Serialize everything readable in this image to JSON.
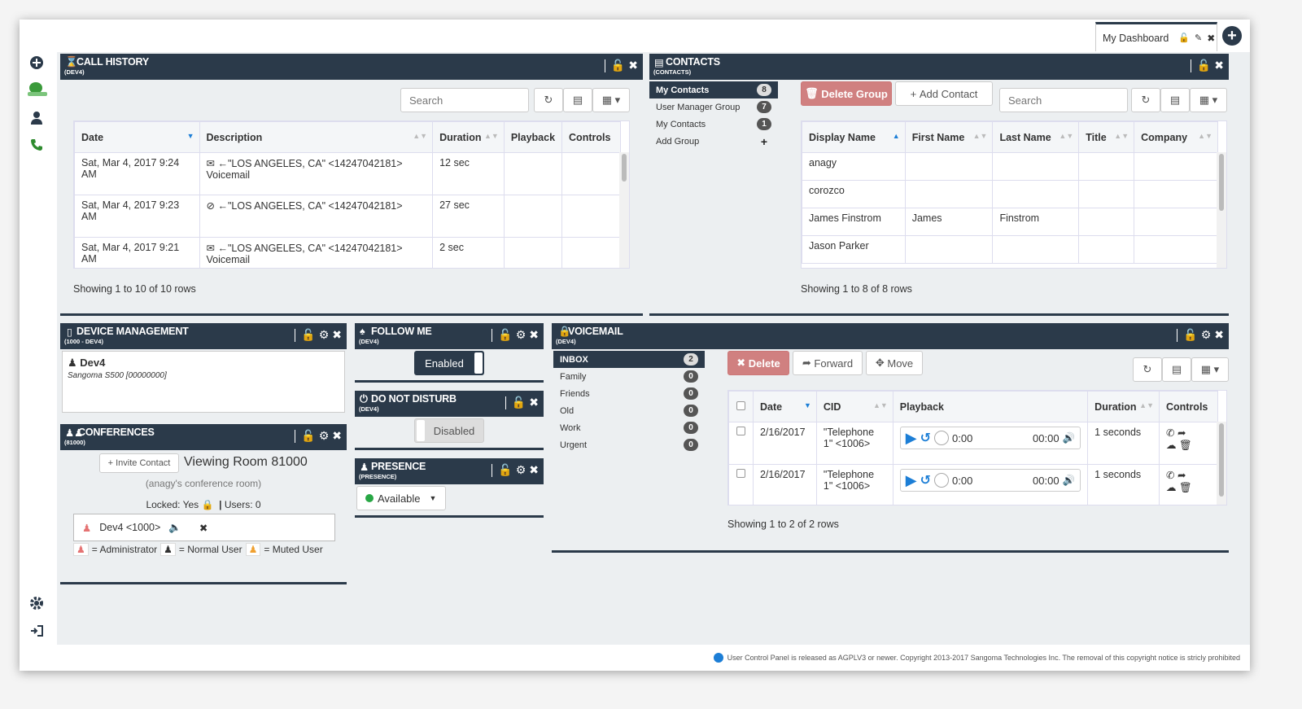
{
  "sidebar": {
    "icons": [
      "add-icon",
      "logo-icon",
      "user-icon",
      "phone-icon",
      "settings-icon",
      "logout-icon"
    ]
  },
  "topbar": {
    "tab_label": "My Dashboard"
  },
  "call_history": {
    "title": "CALL HISTORY",
    "subtitle": "(DEV4)",
    "search_placeholder": "Search",
    "columns": [
      "Date",
      "Description",
      "Duration",
      "Playback",
      "Controls"
    ],
    "rows": [
      {
        "date": "Sat, Mar 4, 2017 9:24 AM",
        "desc": "←\"LOS ANGELES, CA\" <14247042181>",
        "desc2": "Voicemail",
        "duration": "12 sec"
      },
      {
        "date": "Sat, Mar 4, 2017 9:23 AM",
        "desc": "←\"LOS ANGELES, CA\" <14247042181>",
        "desc2": "",
        "duration": "27 sec"
      },
      {
        "date": "Sat, Mar 4, 2017 9:21 AM",
        "desc": "←\"LOS ANGELES, CA\" <14247042181>",
        "desc2": "Voicemail",
        "duration": "2 sec"
      }
    ],
    "footer": "Showing 1 to 10 of 10 rows"
  },
  "contacts": {
    "title": "CONTACTS",
    "subtitle": "(CONTACTS)",
    "groups": [
      {
        "label": "My Contacts",
        "count": "8"
      },
      {
        "label": "User Manager Group",
        "count": "7"
      },
      {
        "label": "My Contacts",
        "count": "1"
      },
      {
        "label": "Add Group",
        "count": "+"
      }
    ],
    "delete_group": "Delete Group",
    "add_contact": "Add Contact",
    "search_placeholder": "Search",
    "columns": [
      "Display Name",
      "First Name",
      "Last Name",
      "Title",
      "Company"
    ],
    "rows": [
      [
        "anagy",
        "",
        "",
        "",
        ""
      ],
      [
        "corozco",
        "",
        "",
        "",
        ""
      ],
      [
        "James Finstrom",
        "James",
        "Finstrom",
        "",
        ""
      ],
      [
        "Jason Parker",
        "",
        "",
        "",
        ""
      ]
    ],
    "footer": "Showing 1 to 8 of 8 rows"
  },
  "device": {
    "title": "DEVICE MANAGEMENT",
    "subtitle": "(1000 - DEV4)",
    "name": "Dev4",
    "model": "Sangoma S500 [00000000]"
  },
  "conferences": {
    "title": "CONFERENCES",
    "subtitle": "(81000)",
    "invite": "Invite Contact",
    "viewing": "Viewing Room 81000",
    "room_name": "(anagy's conference room)",
    "locked": "Locked: Yes",
    "users": "Users: 0",
    "participant": "Dev4 <1000>",
    "legend_admin": "= Administrator",
    "legend_normal": "= Normal User",
    "legend_muted": "= Muted User"
  },
  "follow_me": {
    "title": "FOLLOW ME",
    "subtitle": "(DEV4)",
    "state": "Enabled"
  },
  "dnd": {
    "title": "DO NOT DISTURB",
    "subtitle": "(DEV4)",
    "state": "Disabled"
  },
  "presence": {
    "title": "PRESENCE",
    "subtitle": "(PRESENCE)",
    "state": "Available",
    "state_color": "#28a745"
  },
  "voicemail": {
    "title": "VOICEMAIL",
    "subtitle": "(DEV4)",
    "folders": [
      {
        "label": "INBOX",
        "count": "2"
      },
      {
        "label": "Family",
        "count": "0"
      },
      {
        "label": "Friends",
        "count": "0"
      },
      {
        "label": "Old",
        "count": "0"
      },
      {
        "label": "Work",
        "count": "0"
      },
      {
        "label": "Urgent",
        "count": "0"
      }
    ],
    "delete": "Delete",
    "forward": "Forward",
    "move": "Move",
    "columns": [
      "Date",
      "CID",
      "Playback",
      "Duration",
      "Controls"
    ],
    "rows": [
      {
        "date": "2/16/2017",
        "cid": "\"Telephone 1\" <1006>",
        "time_start": "0:00",
        "time_end": "00:00",
        "duration": "1 seconds"
      },
      {
        "date": "2/16/2017",
        "cid": "\"Telephone 1\" <1006>",
        "time_start": "0:00",
        "time_end": "00:00",
        "duration": "1 seconds"
      }
    ],
    "footer": "Showing 1 to 2 of 2 rows"
  },
  "footer": {
    "text": "User Control Panel is released as AGPLV3 or newer. Copyright 2013-2017 Sangoma Technologies Inc. The removal of this copyright notice is stricly prohibited"
  },
  "colors": {
    "header_bg": "#2b3a4a",
    "delete_bg": "#d9534f",
    "accent_blue": "#1c7ed6"
  }
}
